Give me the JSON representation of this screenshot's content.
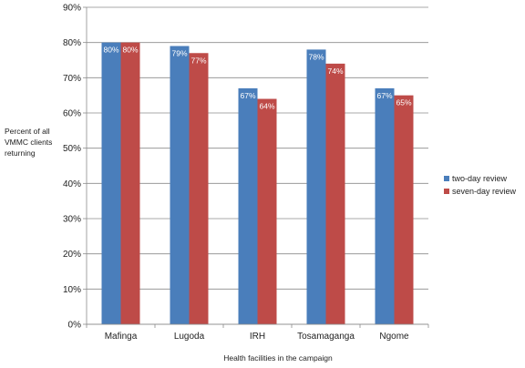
{
  "chart_data": {
    "type": "bar",
    "categories": [
      "Mafinga",
      "Lugoda",
      "IRH",
      "Tosamaganga",
      "Ngome"
    ],
    "series": [
      {
        "name": "two-day review",
        "values": [
          80,
          79,
          67,
          78,
          67
        ],
        "labels": [
          "80%",
          "79%",
          "67%",
          "78%",
          "67%"
        ],
        "color": "#4a7ebb"
      },
      {
        "name": "seven-day review",
        "values": [
          80,
          77,
          64,
          74,
          65
        ],
        "labels": [
          "80%",
          "77%",
          "64%",
          "74%",
          "65%"
        ],
        "color": "#be4b48"
      }
    ],
    "ylim": [
      0,
      90
    ],
    "ytick_step": 10,
    "ytick_labels": [
      "0%",
      "10%",
      "20%",
      "30%",
      "40%",
      "50%",
      "60%",
      "70%",
      "80%",
      "90%"
    ],
    "ylabel_lines": [
      "Percent of all",
      "VMMC clients",
      "returning"
    ],
    "xlabel": "Health facilities in the campaign",
    "title": "",
    "grid": true,
    "legend_position": "right"
  }
}
